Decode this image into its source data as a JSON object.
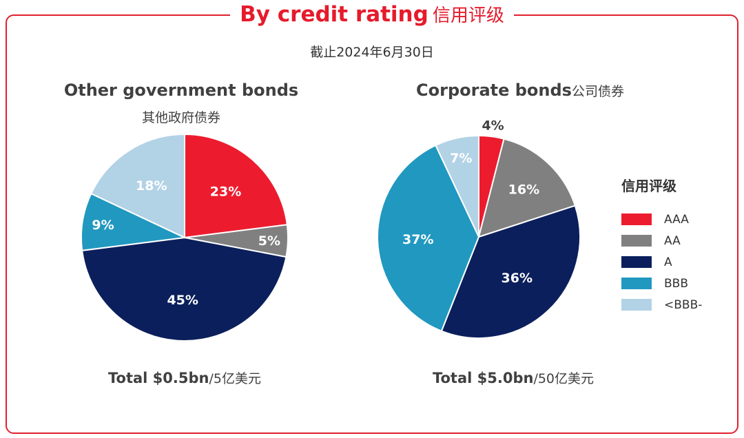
{
  "title": {
    "en": "By credit rating",
    "zh": "信用评级"
  },
  "as_of": "截止2024年6月30日",
  "colors": {
    "border": "#e0202f",
    "title": "#e51b2c"
  },
  "legend": {
    "title": "信用评级",
    "items": [
      {
        "label": "AAA",
        "color": "#ec1c2e"
      },
      {
        "label": "AA",
        "color": "#808080"
      },
      {
        "label": "A",
        "color": "#0b1f5c"
      },
      {
        "label": "BBB",
        "color": "#2198c0"
      },
      {
        "label": "<BBB-",
        "color": "#b2d2e6"
      }
    ]
  },
  "charts": {
    "gov": {
      "title": "Other government bonds",
      "subtitle": "其他政府债券",
      "total_bold": "Total $0.5bn",
      "total_zh": "/5亿美元"
    },
    "corp": {
      "title": "Corporate bonds",
      "subtitle": "公司债券",
      "total_bold": "Total $5.0bn",
      "total_zh": "/50亿美元"
    }
  },
  "chart_data": [
    {
      "type": "pie",
      "title": "Other government bonds",
      "categories": [
        "AAA",
        "AA",
        "A",
        "BBB",
        "<BBB-"
      ],
      "values": [
        23,
        5,
        45,
        9,
        18
      ],
      "labels": [
        "23%",
        "5%",
        "45%",
        "9%",
        "18%"
      ]
    },
    {
      "type": "pie",
      "title": "Corporate bonds",
      "categories": [
        "AAA",
        "AA",
        "A",
        "BBB",
        "<BBB-"
      ],
      "values": [
        4,
        16,
        36,
        37,
        7
      ],
      "labels": [
        "4%",
        "16%",
        "36%",
        "37%",
        "7%"
      ]
    }
  ]
}
